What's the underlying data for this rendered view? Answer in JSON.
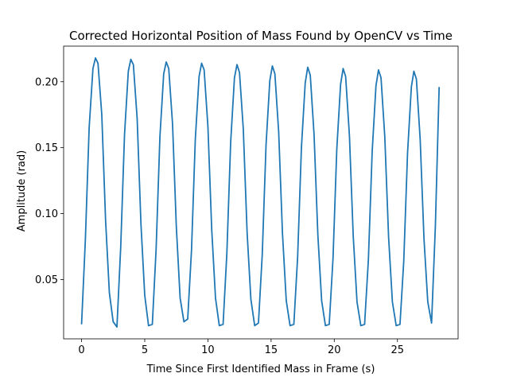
{
  "chart_data": {
    "type": "line",
    "title": "Corrected Horizontal Position of Mass Found by OpenCV vs Time",
    "xlabel": "Time Since First Identified Mass in Frame (s)",
    "ylabel": "Amplitude (rad)",
    "xlim": [
      -1.42,
      29.8
    ],
    "ylim": [
      0.005,
      0.227
    ],
    "xticks": [
      0,
      5,
      10,
      15,
      20,
      25
    ],
    "yticks": [
      0.05,
      0.1,
      0.15,
      0.2
    ],
    "xtick_labels": [
      "0",
      "5",
      "10",
      "15",
      "20",
      "25"
    ],
    "ytick_labels": [
      "0.05",
      "0.10",
      "0.15",
      "0.20"
    ],
    "grid": false,
    "line_color": "#1f77b4",
    "series": [
      {
        "x": [
          0.0,
          0.3,
          0.6,
          0.9,
          1.1,
          1.3,
          1.6,
          1.9,
          2.2,
          2.5,
          2.8,
          3.1,
          3.4,
          3.7,
          3.9,
          4.1,
          4.4,
          4.7,
          5.0,
          5.3,
          5.6,
          5.9,
          6.2,
          6.5,
          6.7,
          6.9,
          7.2,
          7.5,
          7.8,
          8.1,
          8.4,
          8.7,
          9.0,
          9.3,
          9.5,
          9.7,
          10.0,
          10.3,
          10.6,
          10.9,
          11.2,
          11.5,
          11.8,
          12.1,
          12.3,
          12.5,
          12.8,
          13.1,
          13.4,
          13.7,
          14.0,
          14.3,
          14.6,
          14.9,
          15.1,
          15.3,
          15.6,
          15.9,
          16.2,
          16.5,
          16.8,
          17.1,
          17.4,
          17.7,
          17.9,
          18.1,
          18.4,
          18.7,
          19.0,
          19.3,
          19.6,
          19.9,
          20.2,
          20.5,
          20.7,
          20.9,
          21.2,
          21.5,
          21.8,
          22.1,
          22.4,
          22.7,
          23.0,
          23.3,
          23.5,
          23.7,
          24.0,
          24.3,
          24.6,
          24.9,
          25.2,
          25.5,
          25.8,
          26.1,
          26.3,
          26.5,
          26.8,
          27.1,
          27.4,
          27.7,
          28.0,
          28.3
        ],
        "y": [
          0.016,
          0.08,
          0.165,
          0.21,
          0.218,
          0.214,
          0.175,
          0.095,
          0.04,
          0.018,
          0.014,
          0.075,
          0.16,
          0.208,
          0.217,
          0.213,
          0.172,
          0.092,
          0.038,
          0.015,
          0.016,
          0.073,
          0.158,
          0.206,
          0.215,
          0.21,
          0.168,
          0.09,
          0.036,
          0.018,
          0.02,
          0.072,
          0.156,
          0.204,
          0.214,
          0.209,
          0.166,
          0.088,
          0.036,
          0.015,
          0.016,
          0.07,
          0.154,
          0.203,
          0.213,
          0.207,
          0.164,
          0.086,
          0.035,
          0.015,
          0.017,
          0.069,
          0.152,
          0.201,
          0.212,
          0.206,
          0.162,
          0.085,
          0.034,
          0.015,
          0.016,
          0.067,
          0.15,
          0.199,
          0.211,
          0.205,
          0.16,
          0.084,
          0.034,
          0.015,
          0.016,
          0.066,
          0.149,
          0.198,
          0.21,
          0.204,
          0.159,
          0.083,
          0.033,
          0.015,
          0.016,
          0.065,
          0.147,
          0.197,
          0.209,
          0.203,
          0.158,
          0.082,
          0.033,
          0.015,
          0.016,
          0.064,
          0.146,
          0.196,
          0.208,
          0.202,
          0.156,
          0.081,
          0.033,
          0.017,
          0.09,
          0.196
        ]
      }
    ]
  }
}
